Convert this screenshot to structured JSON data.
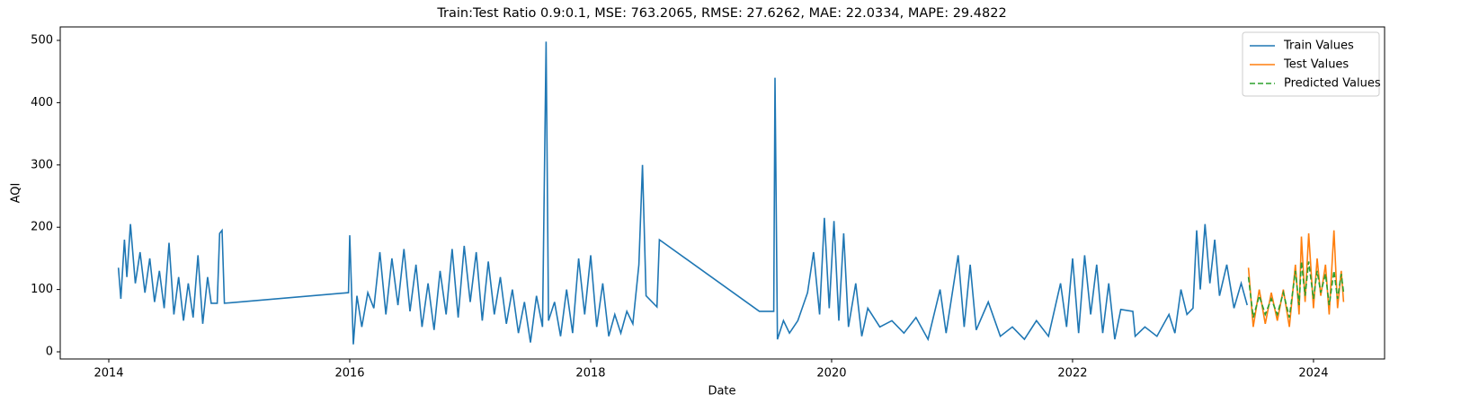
{
  "chart_data": {
    "type": "line",
    "title": "Train:Test Ratio 0.9:0.1, MSE: 763.2065, RMSE: 27.6262, MAE: 22.0334, MAPE: 29.4822",
    "xlabel": "Date",
    "ylabel": "AQI",
    "xlim": [
      2013.597,
      2024.59
    ],
    "xticks": [
      2014,
      2016,
      2018,
      2020,
      2022,
      2024
    ],
    "ylim": [
      -11.5,
      521.6
    ],
    "yticks": [
      0,
      100,
      200,
      300,
      400,
      500
    ],
    "legend": "upper right",
    "grid": false,
    "series": [
      {
        "name": "Train Values",
        "color": "#1f77b4",
        "linestyle": "solid",
        "x": [
          2014.08,
          2014.1,
          2014.13,
          2014.15,
          2014.18,
          2014.22,
          2014.26,
          2014.3,
          2014.34,
          2014.38,
          2014.42,
          2014.46,
          2014.5,
          2014.54,
          2014.58,
          2014.62,
          2014.66,
          2014.7,
          2014.74,
          2014.78,
          2014.82,
          2014.85,
          2014.9,
          2014.92,
          2014.94,
          2014.96,
          2015.99,
          2016.0,
          2016.03,
          2016.06,
          2016.1,
          2016.15,
          2016.2,
          2016.25,
          2016.3,
          2016.35,
          2016.4,
          2016.45,
          2016.5,
          2016.55,
          2016.6,
          2016.65,
          2016.7,
          2016.75,
          2016.8,
          2016.85,
          2016.9,
          2016.95,
          2017.0,
          2017.05,
          2017.1,
          2017.15,
          2017.2,
          2017.25,
          2017.3,
          2017.35,
          2017.4,
          2017.45,
          2017.5,
          2017.55,
          2017.6,
          2017.63,
          2017.65,
          2017.7,
          2017.75,
          2017.8,
          2017.85,
          2017.9,
          2017.95,
          2018.0,
          2018.05,
          2018.1,
          2018.15,
          2018.2,
          2018.25,
          2018.3,
          2018.35,
          2018.4,
          2018.43,
          2018.46,
          2018.55,
          2018.57,
          2019.4,
          2019.52,
          2019.53,
          2019.55,
          2019.6,
          2019.65,
          2019.72,
          2019.8,
          2019.85,
          2019.9,
          2019.94,
          2019.98,
          2020.02,
          2020.06,
          2020.1,
          2020.14,
          2020.2,
          2020.25,
          2020.3,
          2020.4,
          2020.5,
          2020.6,
          2020.7,
          2020.8,
          2020.9,
          2020.95,
          2021.05,
          2021.1,
          2021.15,
          2021.2,
          2021.3,
          2021.4,
          2021.5,
          2021.6,
          2021.7,
          2021.8,
          2021.9,
          2021.95,
          2022.0,
          2022.05,
          2022.1,
          2022.15,
          2022.2,
          2022.25,
          2022.3,
          2022.35,
          2022.4,
          2022.5,
          2022.52,
          2022.6,
          2022.7,
          2022.8,
          2022.85,
          2022.9,
          2022.95,
          2023.0,
          2023.03,
          2023.06,
          2023.1,
          2023.14,
          2023.18,
          2023.22,
          2023.28,
          2023.34,
          2023.4,
          2023.45
        ],
        "values": [
          135,
          85,
          180,
          120,
          205,
          110,
          160,
          95,
          150,
          80,
          130,
          70,
          175,
          60,
          120,
          50,
          110,
          55,
          155,
          45,
          120,
          78,
          78,
          190,
          195,
          78,
          95,
          187,
          12,
          90,
          40,
          95,
          70,
          160,
          60,
          150,
          75,
          165,
          65,
          140,
          40,
          110,
          35,
          130,
          60,
          165,
          55,
          170,
          80,
          160,
          50,
          145,
          60,
          120,
          45,
          100,
          30,
          80,
          15,
          90,
          40,
          498,
          50,
          80,
          25,
          100,
          30,
          150,
          60,
          155,
          40,
          110,
          25,
          60,
          30,
          65,
          45,
          140,
          300,
          90,
          72,
          180,
          65,
          65,
          440,
          20,
          50,
          30,
          50,
          95,
          160,
          60,
          215,
          70,
          210,
          50,
          190,
          40,
          110,
          25,
          70,
          40,
          50,
          30,
          55,
          20,
          100,
          30,
          155,
          40,
          140,
          35,
          80,
          25,
          40,
          20,
          50,
          25,
          110,
          40,
          150,
          30,
          155,
          60,
          140,
          30,
          110,
          20,
          68,
          65,
          25,
          40,
          25,
          60,
          30,
          100,
          60,
          70,
          195,
          100,
          205,
          110,
          180,
          90,
          140,
          70,
          110,
          75
        ]
      },
      {
        "name": "Test Values",
        "color": "#ff7f0e",
        "linestyle": "solid",
        "x": [
          2023.46,
          2023.5,
          2023.55,
          2023.6,
          2023.65,
          2023.7,
          2023.75,
          2023.8,
          2023.85,
          2023.88,
          2023.9,
          2023.93,
          2023.96,
          2024.0,
          2024.03,
          2024.06,
          2024.1,
          2024.13,
          2024.17,
          2024.2,
          2024.23,
          2024.25
        ],
        "values": [
          135,
          40,
          100,
          45,
          95,
          50,
          100,
          40,
          140,
          60,
          185,
          80,
          190,
          70,
          150,
          90,
          140,
          60,
          195,
          70,
          130,
          80
        ]
      },
      {
        "name": "Predicted Values",
        "color": "#2ca02c",
        "linestyle": "dashed",
        "x": [
          2023.46,
          2023.5,
          2023.55,
          2023.6,
          2023.65,
          2023.7,
          2023.75,
          2023.8,
          2023.85,
          2023.88,
          2023.9,
          2023.93,
          2023.96,
          2024.0,
          2024.03,
          2024.06,
          2024.1,
          2024.13,
          2024.17,
          2024.2,
          2024.23,
          2024.25
        ],
        "values": [
          120,
          55,
          90,
          60,
          85,
          60,
          95,
          55,
          130,
          75,
          145,
          90,
          145,
          85,
          130,
          95,
          125,
          75,
          130,
          85,
          125,
          95
        ]
      }
    ]
  }
}
